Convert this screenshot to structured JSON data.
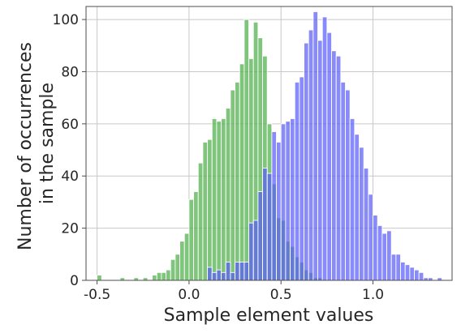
{
  "chart_data": {
    "type": "bar",
    "subtype": "overlapping-histogram",
    "xlabel": "Sample element values",
    "ylabel_lines": [
      "Number of occurrences",
      "in the sample"
    ],
    "xlim": [
      -0.56,
      1.43
    ],
    "ylim": [
      0,
      105
    ],
    "xticks": [
      -0.5,
      0.0,
      0.5,
      1.0
    ],
    "xtick_labels": [
      "-0.5",
      "0.0",
      "0.5",
      "1.0"
    ],
    "yticks": [
      0,
      20,
      40,
      60,
      80,
      100
    ],
    "ytick_labels": [
      "0",
      "20",
      "40",
      "60",
      "80",
      "100"
    ],
    "grid": true,
    "bin_width": 0.025,
    "series": [
      {
        "color": "#4daf4a",
        "bins": [
          [
            -0.5,
            2
          ],
          [
            -0.45,
            0
          ],
          [
            -0.4,
            0
          ],
          [
            -0.375,
            1
          ],
          [
            -0.35,
            0
          ],
          [
            -0.325,
            0
          ],
          [
            -0.3,
            1
          ],
          [
            -0.275,
            0
          ],
          [
            -0.25,
            1
          ],
          [
            -0.225,
            0
          ],
          [
            -0.2,
            2
          ],
          [
            -0.175,
            3
          ],
          [
            -0.15,
            3
          ],
          [
            -0.125,
            4
          ],
          [
            -0.1,
            8
          ],
          [
            -0.075,
            10
          ],
          [
            -0.05,
            15
          ],
          [
            -0.025,
            18
          ],
          [
            0.0,
            31
          ],
          [
            0.025,
            34
          ],
          [
            0.05,
            45
          ],
          [
            0.075,
            53
          ],
          [
            0.1,
            54
          ],
          [
            0.125,
            62
          ],
          [
            0.15,
            61
          ],
          [
            0.175,
            62
          ],
          [
            0.2,
            66
          ],
          [
            0.225,
            73
          ],
          [
            0.25,
            76
          ],
          [
            0.275,
            83
          ],
          [
            0.3,
            100
          ],
          [
            0.325,
            85
          ],
          [
            0.35,
            99
          ],
          [
            0.375,
            93
          ],
          [
            0.4,
            86
          ],
          [
            0.425,
            60
          ],
          [
            0.45,
            37
          ],
          [
            0.475,
            24
          ],
          [
            0.5,
            23
          ],
          [
            0.525,
            15
          ],
          [
            0.55,
            13
          ],
          [
            0.575,
            9
          ],
          [
            0.6,
            7
          ],
          [
            0.625,
            4
          ],
          [
            0.65,
            3
          ],
          [
            0.675,
            1
          ],
          [
            0.7,
            1
          ]
        ]
      },
      {
        "color": "#5a5ef6",
        "bins": [
          [
            0.1,
            5
          ],
          [
            0.125,
            3
          ],
          [
            0.15,
            4
          ],
          [
            0.175,
            3
          ],
          [
            0.2,
            7
          ],
          [
            0.225,
            3
          ],
          [
            0.25,
            7
          ],
          [
            0.275,
            7
          ],
          [
            0.3,
            7
          ],
          [
            0.325,
            22
          ],
          [
            0.35,
            23
          ],
          [
            0.375,
            34
          ],
          [
            0.4,
            43
          ],
          [
            0.425,
            41
          ],
          [
            0.45,
            57
          ],
          [
            0.475,
            53
          ],
          [
            0.5,
            60
          ],
          [
            0.525,
            61
          ],
          [
            0.55,
            62
          ],
          [
            0.575,
            76
          ],
          [
            0.6,
            78
          ],
          [
            0.625,
            91
          ],
          [
            0.65,
            96
          ],
          [
            0.675,
            103
          ],
          [
            0.7,
            92
          ],
          [
            0.725,
            101
          ],
          [
            0.75,
            95
          ],
          [
            0.775,
            88
          ],
          [
            0.8,
            86
          ],
          [
            0.825,
            76
          ],
          [
            0.85,
            73
          ],
          [
            0.875,
            62
          ],
          [
            0.9,
            56
          ],
          [
            0.925,
            51
          ],
          [
            0.95,
            43
          ],
          [
            0.975,
            33
          ],
          [
            1.0,
            25
          ],
          [
            1.025,
            21
          ],
          [
            1.05,
            18
          ],
          [
            1.075,
            19
          ],
          [
            1.1,
            10
          ],
          [
            1.125,
            10
          ],
          [
            1.15,
            7
          ],
          [
            1.175,
            6
          ],
          [
            1.2,
            5
          ],
          [
            1.225,
            4
          ],
          [
            1.25,
            3
          ],
          [
            1.275,
            1
          ],
          [
            1.3,
            1
          ],
          [
            1.35,
            1
          ]
        ]
      }
    ]
  }
}
